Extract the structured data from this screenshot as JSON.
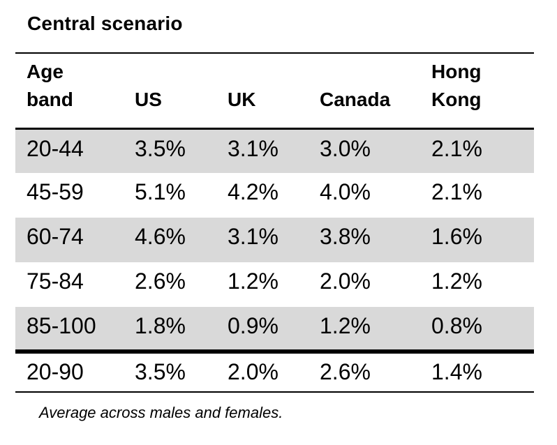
{
  "title": "Central scenario",
  "table": {
    "headers": {
      "age_band": "Age band",
      "us": "US",
      "uk": "UK",
      "canada": "Canada",
      "hong_kong": "Hong Kong"
    },
    "rows": [
      {
        "age_band": "20-44",
        "us": "3.5%",
        "uk": "3.1%",
        "canada": "3.0%",
        "hong_kong": "2.1%"
      },
      {
        "age_band": "45-59",
        "us": "5.1%",
        "uk": "4.2%",
        "canada": "4.0%",
        "hong_kong": "2.1%"
      },
      {
        "age_band": "60-74",
        "us": "4.6%",
        "uk": "3.1%",
        "canada": "3.8%",
        "hong_kong": "1.6%"
      },
      {
        "age_band": "75-84",
        "us": "2.6%",
        "uk": "1.2%",
        "canada": "2.0%",
        "hong_kong": "1.2%"
      },
      {
        "age_band": "85-100",
        "us": "1.8%",
        "uk": "0.9%",
        "canada": "1.2%",
        "hong_kong": "0.8%"
      }
    ],
    "total_row": {
      "age_band": "20-90",
      "us": "3.5%",
      "uk": "2.0%",
      "canada": "2.6%",
      "hong_kong": "1.4%"
    }
  },
  "footnote": "Average across males and females.",
  "colors": {
    "row_shade": "#d9d9d9",
    "rule": "#000000",
    "text": "#000000",
    "background": "#ffffff"
  },
  "chart_data": {
    "type": "table",
    "title": "Central scenario",
    "columns": [
      "Age band",
      "US",
      "UK",
      "Canada",
      "Hong Kong"
    ],
    "rows": [
      [
        "20-44",
        "3.5%",
        "3.1%",
        "3.0%",
        "2.1%"
      ],
      [
        "45-59",
        "5.1%",
        "4.2%",
        "4.0%",
        "2.1%"
      ],
      [
        "60-74",
        "4.6%",
        "3.1%",
        "3.8%",
        "1.6%"
      ],
      [
        "75-84",
        "2.6%",
        "1.2%",
        "2.0%",
        "1.2%"
      ],
      [
        "85-100",
        "1.8%",
        "0.9%",
        "1.2%",
        "0.8%"
      ],
      [
        "20-90",
        "3.5%",
        "2.0%",
        "2.6%",
        "1.4%"
      ]
    ],
    "shaded_row_indices": [
      0,
      2,
      4
    ],
    "summary_row_index": 5,
    "footnote": "Average across males and females.",
    "layout_hints": {
      "grid": "horizontal-rules-only",
      "alternating_row_shading": true,
      "thick_rule_above_summary": true
    }
  }
}
